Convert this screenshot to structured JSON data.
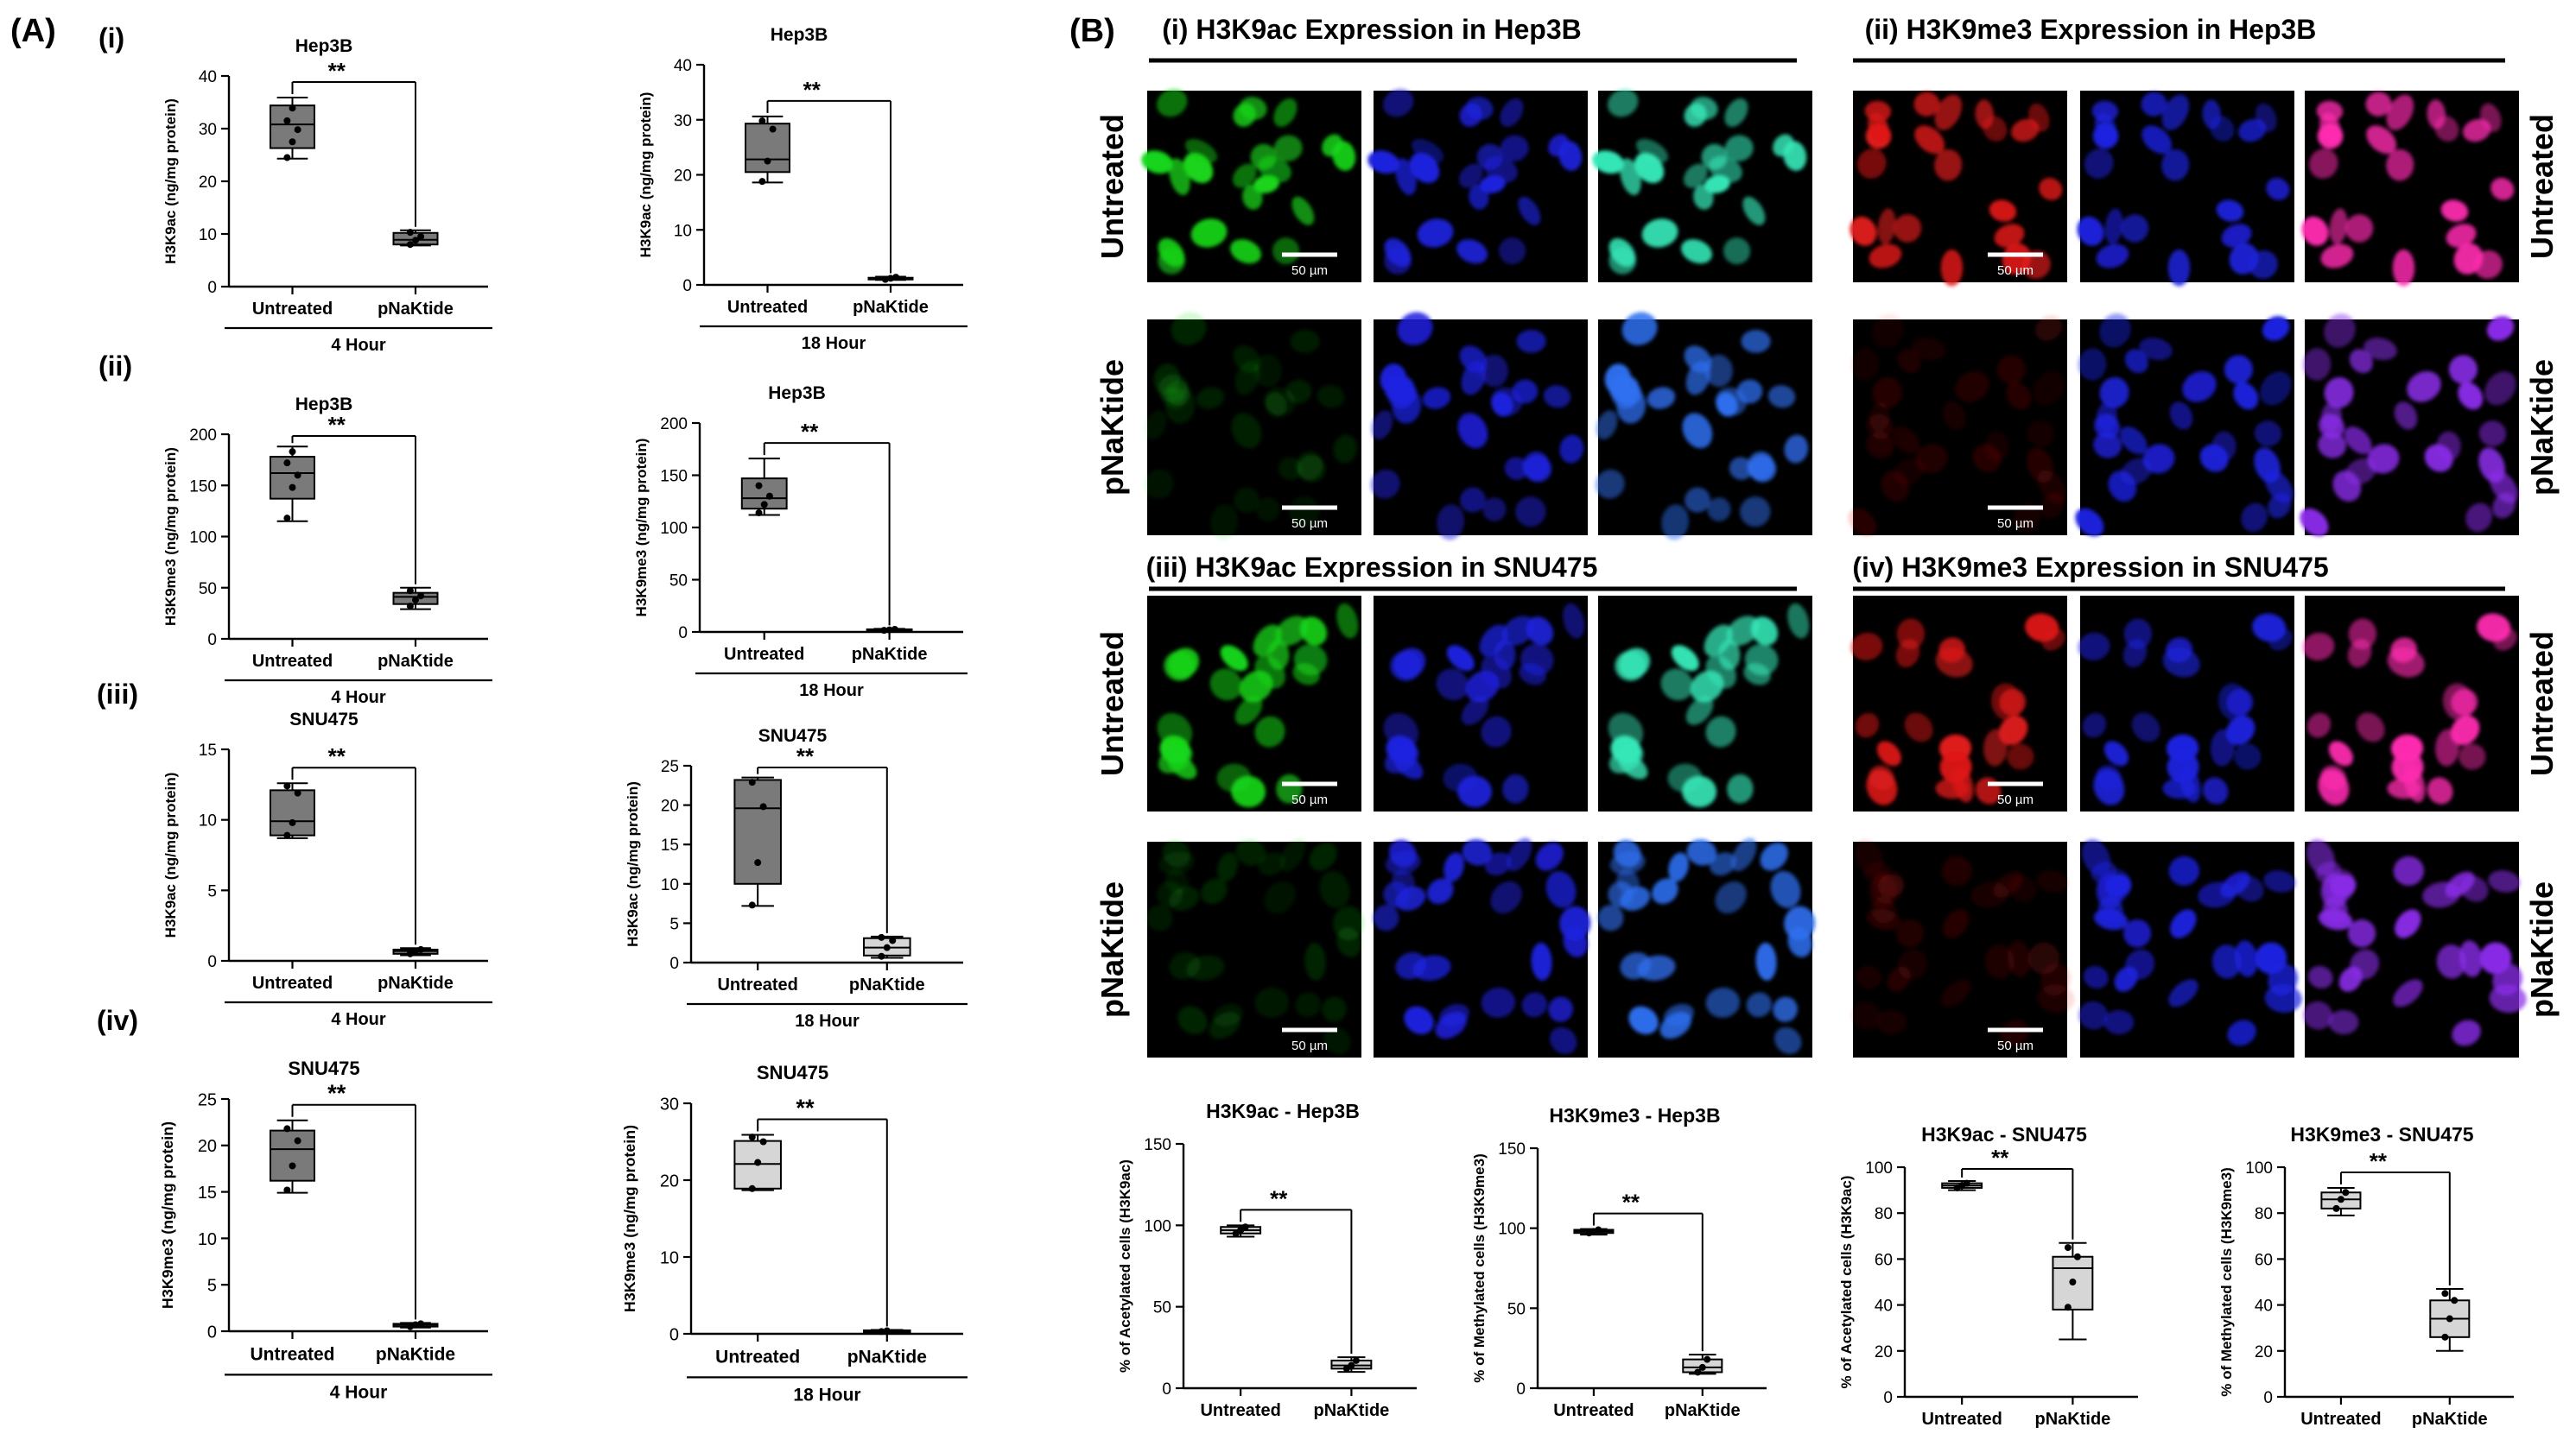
{
  "panel_labels": {
    "A": "(A)",
    "B": "(B)"
  },
  "row_labels": [
    "(i)",
    "(ii)",
    "(iii)",
    "(iv)"
  ],
  "colors": {
    "green": "#19d81a",
    "blue": "#1d22e0",
    "red": "#e01a1a",
    "merge_green": "#36e8b8",
    "merge_red": "#ff2bb0",
    "box_dark": "#7a7a7a",
    "box_light": "#d6d6d6"
  },
  "microscopy": {
    "sections": [
      {
        "title": "(i) H3K9ac Expression in Hep3B",
        "stain": "green"
      },
      {
        "title": "(ii) H3K9me3 Expression in Hep3B",
        "stain": "red"
      },
      {
        "title": "(iii) H3K9ac Expression in SNU475",
        "stain": "green"
      },
      {
        "title": "(iv) H3K9me3 Expression in SNU475",
        "stain": "red"
      }
    ],
    "treatment_labels": [
      "Untreated",
      "pNaKtide"
    ],
    "scale_bar": "50 µm"
  },
  "chart_data": [
    {
      "id": "A-i-4h",
      "type": "box",
      "title": "Hep3B",
      "ylabel": "H3K9ac (ng/mg protein)",
      "group_label": "4 Hour",
      "categories": [
        "Untreated",
        "pNaKtide"
      ],
      "ylim": [
        0,
        40
      ],
      "yticks": [
        0,
        10,
        20,
        30,
        40
      ],
      "sig": "**",
      "fills": [
        "#7a7a7a",
        "#7a7a7a"
      ],
      "boxes": [
        {
          "min": 24.3,
          "q1": 26.3,
          "median": 30.8,
          "q3": 34.4,
          "max": 35.9,
          "points": [
            24.5,
            27.5,
            29.8,
            31.5,
            33.9
          ]
        },
        {
          "min": 7.8,
          "q1": 8.0,
          "median": 8.9,
          "q3": 10.2,
          "max": 10.7,
          "points": [
            8.0,
            8.8,
            9.5,
            10.3
          ]
        }
      ]
    },
    {
      "id": "A-i-18h",
      "type": "box",
      "title": "Hep3B",
      "ylabel": "H3K9ac (ng/mg protein)",
      "group_label": "18 Hour",
      "categories": [
        "Untreated",
        "pNaKtide"
      ],
      "ylim": [
        0,
        40
      ],
      "yticks": [
        0,
        10,
        20,
        30,
        40
      ],
      "sig": "**",
      "fills": [
        "#7a7a7a",
        "#7a7a7a"
      ],
      "boxes": [
        {
          "min": 18.6,
          "q1": 20.5,
          "median": 22.8,
          "q3": 29.3,
          "max": 30.6,
          "points": [
            18.8,
            22.5,
            28.3,
            29.8
          ]
        },
        {
          "min": 0.9,
          "q1": 1.0,
          "median": 1.2,
          "q3": 1.3,
          "max": 1.5,
          "points": [
            1.0,
            1.2,
            1.4
          ]
        }
      ]
    },
    {
      "id": "A-ii-4h",
      "type": "box",
      "title": "Hep3B",
      "ylabel": "H3K9me3 (ng/mg protein)",
      "group_label": "4 Hour",
      "categories": [
        "Untreated",
        "pNaKtide"
      ],
      "ylim": [
        0,
        200
      ],
      "yticks": [
        0,
        50,
        100,
        150,
        200
      ],
      "sig": "**",
      "fills": [
        "#7a7a7a",
        "#7a7a7a"
      ],
      "boxes": [
        {
          "min": 115,
          "q1": 137,
          "median": 162,
          "q3": 178,
          "max": 188,
          "points": [
            118,
            148,
            160,
            172,
            183
          ]
        },
        {
          "min": 29,
          "q1": 34,
          "median": 41,
          "q3": 45,
          "max": 50,
          "points": [
            32,
            38,
            42,
            47
          ]
        }
      ]
    },
    {
      "id": "A-ii-18h",
      "type": "box",
      "title": "Hep3B",
      "ylabel": "H3K9me3 (ng/mg protein)",
      "group_label": "18 Hour",
      "categories": [
        "Untreated",
        "pNaKtide"
      ],
      "ylim": [
        0,
        200
      ],
      "yticks": [
        0,
        50,
        100,
        150,
        200
      ],
      "sig": "**",
      "fills": [
        "#7a7a7a",
        "#7a7a7a"
      ],
      "boxes": [
        {
          "min": 112,
          "q1": 118,
          "median": 128,
          "q3": 147,
          "max": 166,
          "points": [
            114,
            122,
            130,
            140
          ]
        },
        {
          "min": 1,
          "q1": 1.5,
          "median": 2,
          "q3": 2.5,
          "max": 3,
          "points": [
            1.5,
            2,
            2.5
          ]
        }
      ]
    },
    {
      "id": "A-iii-4h",
      "type": "box",
      "title": "SNU475",
      "ylabel": "H3K9ac (ng/mg protein)",
      "group_label": "4 Hour",
      "categories": [
        "Untreated",
        "pNaKtide"
      ],
      "ylim": [
        0,
        15
      ],
      "yticks": [
        0,
        5,
        10,
        15
      ],
      "sig": "**",
      "fills": [
        "#7a7a7a",
        "#7a7a7a"
      ],
      "boxes": [
        {
          "min": 8.7,
          "q1": 8.9,
          "median": 9.9,
          "q3": 12.1,
          "max": 12.6,
          "points": [
            8.9,
            9.8,
            11.9,
            12.4
          ]
        },
        {
          "min": 0.4,
          "q1": 0.5,
          "median": 0.7,
          "q3": 0.8,
          "max": 0.9,
          "points": [
            0.5,
            0.7,
            0.8
          ]
        }
      ]
    },
    {
      "id": "A-iii-18h",
      "type": "box",
      "title": "SNU475",
      "ylabel": "H3K9ac (ng/mg protein)",
      "group_label": "18 Hour",
      "categories": [
        "Untreated",
        "pNaKtide"
      ],
      "ylim": [
        0,
        25
      ],
      "yticks": [
        0,
        5,
        10,
        15,
        20,
        25
      ],
      "sig": "**",
      "fills": [
        "#7a7a7a",
        "#d6d6d6"
      ],
      "boxes": [
        {
          "min": 7.2,
          "q1": 10.0,
          "median": 19.6,
          "q3": 23.2,
          "max": 23.5,
          "points": [
            7.3,
            12.7,
            19.8,
            22.9
          ]
        },
        {
          "min": 0.6,
          "q1": 0.9,
          "median": 1.9,
          "q3": 3.1,
          "max": 3.3,
          "points": [
            0.8,
            1.9,
            2.8,
            3.2
          ]
        }
      ]
    },
    {
      "id": "A-iv-4h",
      "type": "box",
      "title": "SNU475",
      "ylabel": "H3K9me3 (ng/mg protein)",
      "group_label": "4 Hour",
      "categories": [
        "Untreated",
        "pNaKtide"
      ],
      "ylim": [
        0,
        25
      ],
      "yticks": [
        0,
        5,
        10,
        15,
        20,
        25
      ],
      "sig": "**",
      "fills": [
        "#7a7a7a",
        "#7a7a7a"
      ],
      "boxes": [
        {
          "min": 14.9,
          "q1": 16.2,
          "median": 19.6,
          "q3": 21.6,
          "max": 22.7,
          "points": [
            15.2,
            17.8,
            20.5,
            21.8
          ]
        },
        {
          "min": 0.4,
          "q1": 0.5,
          "median": 0.7,
          "q3": 0.8,
          "max": 0.9,
          "points": [
            0.5,
            0.7,
            0.8
          ]
        }
      ]
    },
    {
      "id": "A-iv-18h",
      "type": "box",
      "title": "SNU475",
      "ylabel": "H3K9me3 (ng/mg protein)",
      "group_label": "18 Hour",
      "categories": [
        "Untreated",
        "pNaKtide"
      ],
      "ylim": [
        0,
        30
      ],
      "yticks": [
        0,
        10,
        20,
        30
      ],
      "sig": "**",
      "fills": [
        "#d6d6d6",
        "#d6d6d6"
      ],
      "boxes": [
        {
          "min": 18.7,
          "q1": 18.9,
          "median": 22.1,
          "q3": 25.1,
          "max": 25.9,
          "points": [
            18.9,
            22.3,
            25.0,
            25.6
          ]
        },
        {
          "min": 0.2,
          "q1": 0.25,
          "median": 0.35,
          "q3": 0.45,
          "max": 0.5,
          "points": [
            0.3,
            0.4
          ]
        }
      ]
    },
    {
      "id": "B-ac-Hep3B",
      "type": "box",
      "title": "H3K9ac - Hep3B",
      "ylabel": "% of Acetylated cells (H3K9ac)",
      "group_label": "",
      "categories": [
        "Untreated",
        "pNaKtide"
      ],
      "ylim": [
        0,
        150
      ],
      "yticks": [
        0,
        50,
        100,
        150
      ],
      "sig": "**",
      "fills": [
        "#d6d6d6",
        "#d6d6d6"
      ],
      "boxes": [
        {
          "min": 93,
          "q1": 95,
          "median": 97,
          "q3": 99,
          "max": 100,
          "points": [
            95,
            97,
            99
          ]
        },
        {
          "min": 10,
          "q1": 12,
          "median": 14,
          "q3": 17,
          "max": 19,
          "points": [
            12,
            14,
            17
          ]
        }
      ]
    },
    {
      "id": "B-me3-Hep3B",
      "type": "box",
      "title": "H3K9me3 - Hep3B",
      "ylabel": "% of Methylated cells (H3K9me3)",
      "group_label": "",
      "categories": [
        "Untreated",
        "pNaKtide"
      ],
      "ylim": [
        0,
        150
      ],
      "yticks": [
        0,
        50,
        100,
        150
      ],
      "sig": "**",
      "fills": [
        "#d6d6d6",
        "#d6d6d6"
      ],
      "boxes": [
        {
          "min": 96,
          "q1": 97,
          "median": 98,
          "q3": 99,
          "max": 99.5,
          "points": [
            97,
            98,
            99
          ]
        },
        {
          "min": 9,
          "q1": 10,
          "median": 13,
          "q3": 18,
          "max": 21,
          "points": [
            10,
            13,
            18
          ]
        }
      ]
    },
    {
      "id": "B-ac-SNU475",
      "type": "box",
      "title": "H3K9ac - SNU475",
      "ylabel": "% of Acetylated cells (H3K9ac)",
      "group_label": "",
      "categories": [
        "Untreated",
        "pNaKtide"
      ],
      "ylim": [
        0,
        100
      ],
      "yticks": [
        0,
        20,
        40,
        60,
        80,
        100
      ],
      "sig": "**",
      "fills": [
        "#d6d6d6",
        "#d6d6d6"
      ],
      "boxes": [
        {
          "min": 90,
          "q1": 91,
          "median": 92,
          "q3": 93,
          "max": 94,
          "points": [
            91,
            92,
            93
          ]
        },
        {
          "min": 25,
          "q1": 38,
          "median": 56,
          "q3": 61,
          "max": 67,
          "points": [
            39,
            50,
            61,
            65
          ]
        }
      ]
    },
    {
      "id": "B-me3-SNU475",
      "type": "box",
      "title": "H3K9me3 - SNU475",
      "ylabel": "% of Methylated cells (H3K9me3)",
      "group_label": "",
      "categories": [
        "Untreated",
        "pNaKtide"
      ],
      "ylim": [
        0,
        100
      ],
      "yticks": [
        0,
        20,
        40,
        60,
        80,
        100
      ],
      "sig": "**",
      "fills": [
        "#d6d6d6",
        "#d6d6d6"
      ],
      "boxes": [
        {
          "min": 79,
          "q1": 82,
          "median": 86,
          "q3": 89,
          "max": 91,
          "points": [
            82,
            86,
            89
          ]
        },
        {
          "min": 20,
          "q1": 26,
          "median": 34,
          "q3": 42,
          "max": 47,
          "points": [
            26,
            34,
            42,
            45
          ]
        }
      ]
    }
  ]
}
